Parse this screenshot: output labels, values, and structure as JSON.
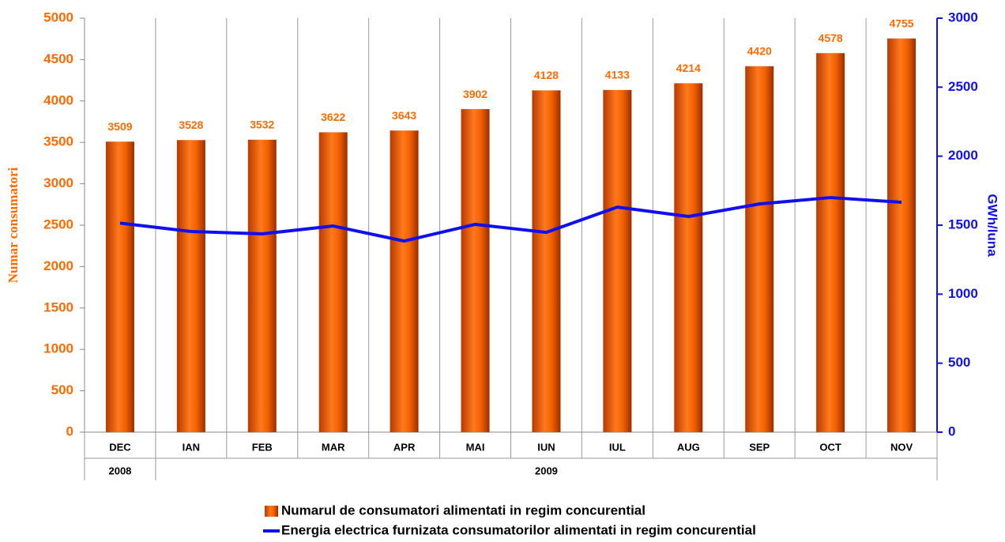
{
  "chart_data": {
    "type": "bar",
    "categories": [
      "DEC",
      "IAN",
      "FEB",
      "MAR",
      "APR",
      "MAI",
      "IUN",
      "IUL",
      "AUG",
      "SEP",
      "OCT",
      "NOV"
    ],
    "groups": [
      {
        "label": "2008",
        "start": 0,
        "end": 0
      },
      {
        "label": "2009",
        "start": 1,
        "end": 11
      }
    ],
    "y_label": "Numar consumatori",
    "y2_label": "GWh/luna",
    "ylim": [
      0,
      5000
    ],
    "yticks": [
      0,
      500,
      1000,
      1500,
      2000,
      2500,
      3000,
      3500,
      4000,
      4500,
      5000
    ],
    "y2lim": [
      0,
      3000
    ],
    "y2ticks": [
      0,
      500,
      1000,
      1500,
      2000,
      2500,
      3000
    ],
    "series": [
      {
        "name": "Numarul de consumatori alimentati in regim concurential",
        "type": "bar",
        "color": "#ff6a00",
        "values": [
          3509,
          3528,
          3532,
          3622,
          3643,
          3902,
          4128,
          4133,
          4214,
          4420,
          4578,
          4755
        ]
      },
      {
        "name": "Energia electrica furnizata consumatorilor alimentati in regim concurential",
        "type": "line",
        "axis": "y2",
        "color": "#1010ee",
        "values": [
          1515,
          1454,
          1437,
          1494,
          1385,
          1506,
          1448,
          1631,
          1563,
          1654,
          1700,
          1666
        ]
      }
    ]
  }
}
